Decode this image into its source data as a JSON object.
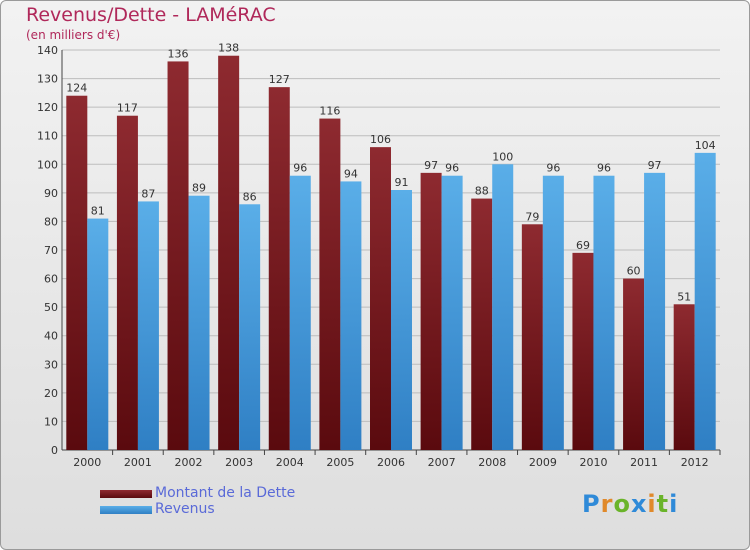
{
  "title": "Revenus/Dette - LAMéRAC",
  "subtitle": "(en milliers d'€)",
  "logo_text": "Proxiti",
  "colors": {
    "dette": "#7a1a1e",
    "revenus": "#4a9ee0",
    "title": "#b0285a",
    "legend_text": "#5a6ad8"
  },
  "chart_data": {
    "type": "bar",
    "title": "Revenus/Dette - LAMéRAC",
    "subtitle": "(en milliers d'€)",
    "categories": [
      "2000",
      "2001",
      "2002",
      "2003",
      "2004",
      "2005",
      "2006",
      "2007",
      "2008",
      "2009",
      "2010",
      "2011",
      "2012"
    ],
    "series": [
      {
        "name": "Montant de la Dette",
        "color": "#7a1a1e",
        "values": [
          124,
          117,
          136,
          138,
          127,
          116,
          106,
          97,
          88,
          79,
          69,
          60,
          51
        ]
      },
      {
        "name": "Revenus",
        "color": "#4a9ee0",
        "values": [
          81,
          87,
          89,
          86,
          96,
          94,
          91,
          96,
          100,
          96,
          96,
          97,
          104
        ]
      }
    ],
    "ylim": [
      0,
      140
    ],
    "yticks": [
      0,
      10,
      20,
      30,
      40,
      50,
      60,
      70,
      80,
      90,
      100,
      110,
      120,
      130,
      140
    ],
    "grid": true,
    "legend_position": "bottom-left"
  }
}
